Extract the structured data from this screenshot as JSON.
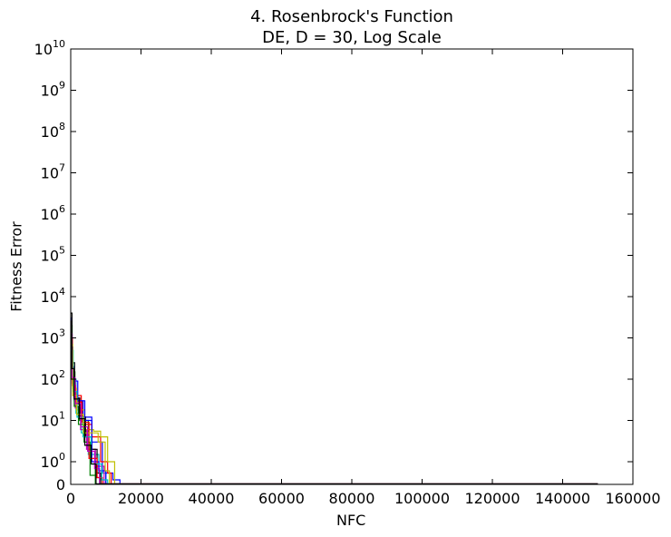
{
  "chart_data": {
    "type": "line",
    "title": "4.   Rosenbrock's Function",
    "subtitle": "DE, D = 30, Log Scale",
    "xlabel": "NFC",
    "ylabel": "Fitness Error",
    "xlim": [
      0,
      160000
    ],
    "y_scale": "symlog",
    "y_linear_threshold": 1,
    "ylim": [
      0,
      10000000000
    ],
    "x_ticks": [
      0,
      20000,
      40000,
      60000,
      80000,
      100000,
      120000,
      140000,
      160000
    ],
    "y_ticks": [
      {
        "value": 0,
        "base": "0",
        "exp": ""
      },
      {
        "value": 1,
        "base": "10",
        "exp": "0"
      },
      {
        "value": 10,
        "base": "10",
        "exp": "1"
      },
      {
        "value": 100,
        "base": "10",
        "exp": "2"
      },
      {
        "value": 1000,
        "base": "10",
        "exp": "3"
      },
      {
        "value": 10000,
        "base": "10",
        "exp": "4"
      },
      {
        "value": 100000,
        "base": "10",
        "exp": "5"
      },
      {
        "value": 1000000,
        "base": "10",
        "exp": "6"
      },
      {
        "value": 10000000,
        "base": "10",
        "exp": "7"
      },
      {
        "value": 100000000,
        "base": "10",
        "exp": "8"
      },
      {
        "value": 1000000000,
        "base": "10",
        "exp": "9"
      },
      {
        "value": 10000000000,
        "base": "10",
        "exp": "10"
      }
    ],
    "grid": false,
    "legend": false,
    "series": [
      {
        "color": "#0000ff",
        "points": [
          [
            0,
            3000
          ],
          [
            300,
            200
          ],
          [
            1000,
            30
          ],
          [
            3500,
            12
          ],
          [
            6000,
            3
          ],
          [
            9000,
            0.5
          ],
          [
            12000,
            0.2
          ],
          [
            14000,
            0.02
          ],
          [
            150000,
            0.02
          ]
        ]
      },
      {
        "color": "#008000",
        "points": [
          [
            0,
            2000
          ],
          [
            400,
            150
          ],
          [
            1200,
            25
          ],
          [
            2500,
            10
          ],
          [
            5000,
            2
          ],
          [
            7000,
            0.3
          ],
          [
            9000,
            0.02
          ],
          [
            150000,
            0.02
          ]
        ]
      },
      {
        "color": "#ff0000",
        "points": [
          [
            0,
            1500
          ],
          [
            300,
            120
          ],
          [
            900,
            40
          ],
          [
            3000,
            8
          ],
          [
            6000,
            4
          ],
          [
            8500,
            1
          ],
          [
            10500,
            0.5
          ],
          [
            11500,
            0.02
          ],
          [
            150000,
            0.02
          ]
        ]
      },
      {
        "color": "#00bfbf",
        "points": [
          [
            0,
            800
          ],
          [
            500,
            100
          ],
          [
            1500,
            15
          ],
          [
            3000,
            5
          ],
          [
            5000,
            1.5
          ],
          [
            8000,
            0.5
          ],
          [
            10000,
            0.02
          ],
          [
            150000,
            0.02
          ]
        ]
      },
      {
        "color": "#bf00bf",
        "points": [
          [
            0,
            1200
          ],
          [
            400,
            80
          ],
          [
            1300,
            20
          ],
          [
            2800,
            6
          ],
          [
            4500,
            2
          ],
          [
            7000,
            0.8
          ],
          [
            9500,
            0.02
          ],
          [
            150000,
            0.02
          ]
        ]
      },
      {
        "color": "#bfbf00",
        "points": [
          [
            0,
            900
          ],
          [
            500,
            60
          ],
          [
            1600,
            18
          ],
          [
            4000,
            6
          ],
          [
            6500,
            5.5
          ],
          [
            8500,
            4
          ],
          [
            10500,
            1
          ],
          [
            12500,
            0.02
          ],
          [
            150000,
            0.02
          ]
        ]
      },
      {
        "color": "#000000",
        "points": [
          [
            0,
            4000
          ],
          [
            350,
            250
          ],
          [
            1100,
            35
          ],
          [
            2600,
            12
          ],
          [
            4200,
            4
          ],
          [
            6000,
            2
          ],
          [
            7500,
            0.5
          ],
          [
            8500,
            0.02
          ],
          [
            150000,
            0.02
          ]
        ]
      },
      {
        "color": "#0000ff",
        "points": [
          [
            0,
            600
          ],
          [
            600,
            90
          ],
          [
            2000,
            30
          ],
          [
            4000,
            10
          ],
          [
            6000,
            1
          ],
          [
            8000,
            0.6
          ],
          [
            10000,
            0.02
          ],
          [
            150000,
            0.02
          ]
        ]
      },
      {
        "color": "#008000",
        "points": [
          [
            0,
            1800
          ],
          [
            300,
            100
          ],
          [
            1000,
            22
          ],
          [
            2200,
            8
          ],
          [
            3800,
            3
          ],
          [
            5500,
            0.4
          ],
          [
            7000,
            0.02
          ],
          [
            150000,
            0.02
          ]
        ]
      },
      {
        "color": "#ff0000",
        "points": [
          [
            0,
            1000
          ],
          [
            450,
            70
          ],
          [
            1400,
            28
          ],
          [
            3200,
            9
          ],
          [
            5200,
            1.2
          ],
          [
            7500,
            0.3
          ],
          [
            9000,
            0.02
          ],
          [
            150000,
            0.02
          ]
        ]
      },
      {
        "color": "#00bfbf",
        "points": [
          [
            0,
            500
          ],
          [
            700,
            50
          ],
          [
            1800,
            12
          ],
          [
            3500,
            4
          ],
          [
            5800,
            0.9
          ],
          [
            8800,
            0.2
          ],
          [
            10500,
            0.02
          ],
          [
            150000,
            0.02
          ]
        ]
      },
      {
        "color": "#bfbf00",
        "points": [
          [
            0,
            700
          ],
          [
            550,
            40
          ],
          [
            1700,
            14
          ],
          [
            3600,
            5
          ],
          [
            5600,
            5
          ],
          [
            7800,
            3
          ],
          [
            9800,
            0.6
          ],
          [
            11000,
            0.02
          ],
          [
            150000,
            0.02
          ]
        ]
      },
      {
        "color": "#bf00bf",
        "points": [
          [
            0,
            1300
          ],
          [
            380,
            110
          ],
          [
            1250,
            26
          ],
          [
            2900,
            7
          ],
          [
            4800,
            1.8
          ],
          [
            6800,
            0.7
          ],
          [
            8200,
            0.02
          ],
          [
            150000,
            0.02
          ]
        ]
      },
      {
        "color": "#000000",
        "points": [
          [
            0,
            2500
          ],
          [
            320,
            180
          ],
          [
            950,
            33
          ],
          [
            2400,
            11
          ],
          [
            4000,
            2.5
          ],
          [
            5800,
            0.9
          ],
          [
            7200,
            0.02
          ],
          [
            150000,
            0.02
          ]
        ]
      }
    ]
  }
}
